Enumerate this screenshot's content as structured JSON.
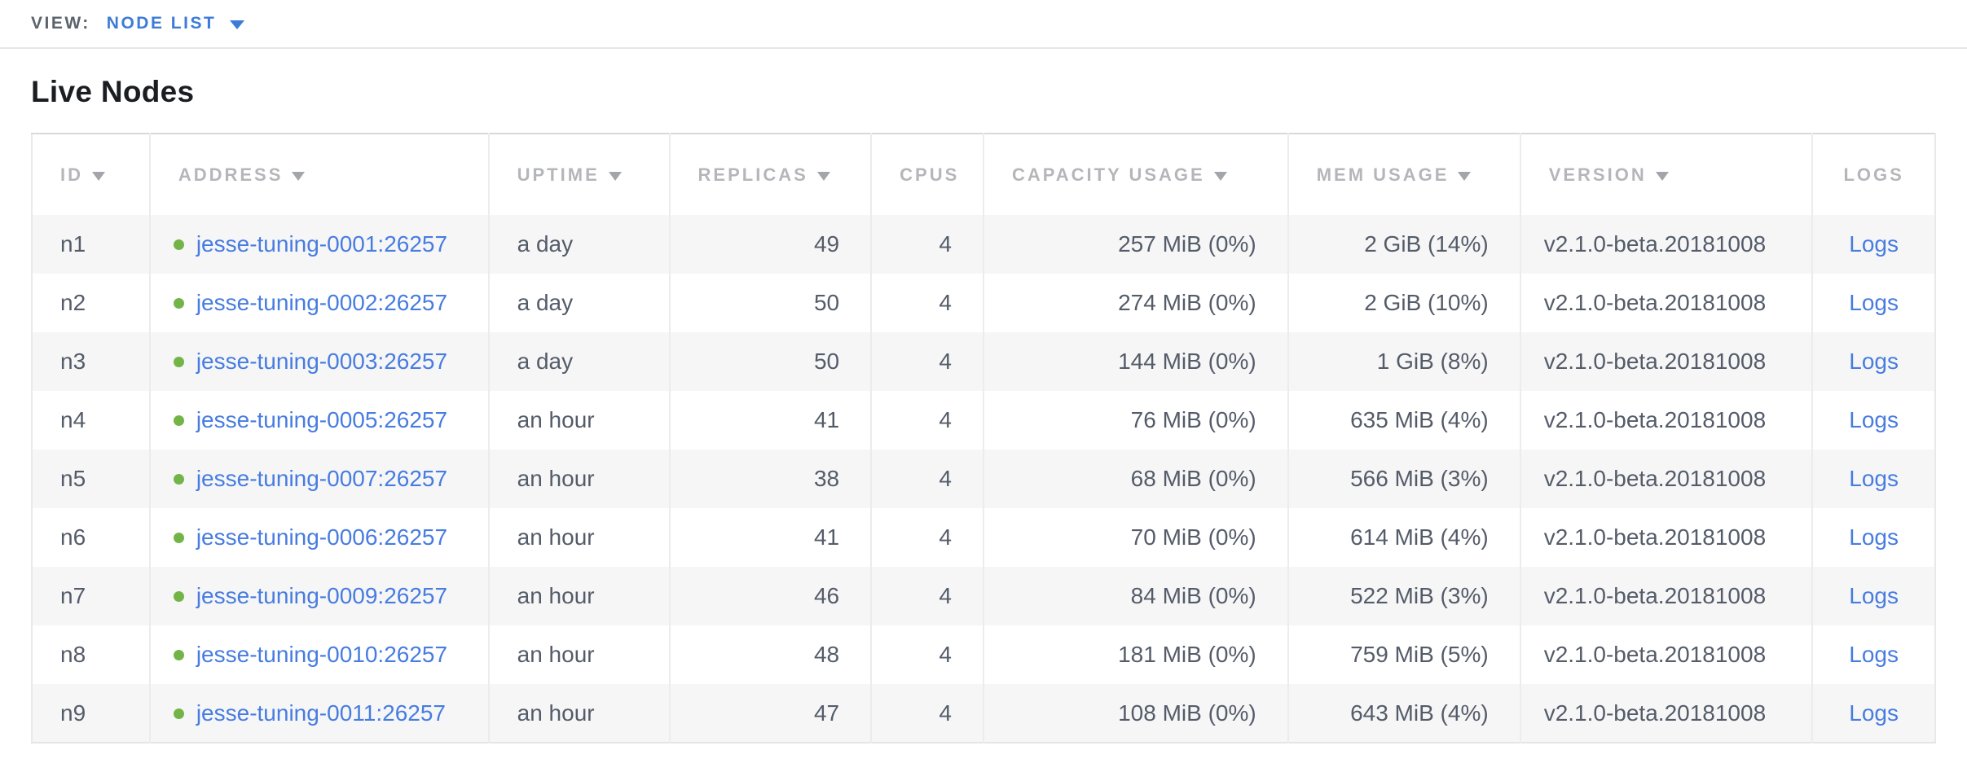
{
  "view_bar": {
    "label": "VIEW:",
    "selected": "NODE LIST",
    "dropdown_icon": "triangle-down"
  },
  "page": {
    "title": "Live Nodes"
  },
  "colors": {
    "link_blue": "#477ce0",
    "selector_blue": "#3d7bd8",
    "status_green": "#73b449",
    "header_gray": "#b4b6ba",
    "cell_text": "#545c69",
    "row_stripe": "#f6f6f7"
  },
  "table": {
    "logs_label": "Logs",
    "columns": [
      {
        "key": "id",
        "label": "ID",
        "sortable": true,
        "align": "left",
        "width": "6.2%"
      },
      {
        "key": "address",
        "label": "ADDRESS",
        "sortable": true,
        "align": "left",
        "width": "17.8%"
      },
      {
        "key": "uptime",
        "label": "UPTIME",
        "sortable": true,
        "align": "left",
        "width": "9.5%"
      },
      {
        "key": "replicas",
        "label": "REPLICAS",
        "sortable": true,
        "align": "right",
        "width": "10.6%"
      },
      {
        "key": "cpus",
        "label": "CPUS",
        "sortable": false,
        "align": "right",
        "width": "5.9%"
      },
      {
        "key": "capacity",
        "label": "CAPACITY USAGE",
        "sortable": true,
        "align": "right",
        "width": "16.0%"
      },
      {
        "key": "mem",
        "label": "MEM USAGE",
        "sortable": true,
        "align": "right",
        "width": "12.2%"
      },
      {
        "key": "version",
        "label": "VERSION",
        "sortable": true,
        "align": "left",
        "width": "15.35%"
      },
      {
        "key": "logs",
        "label": "LOGS",
        "sortable": false,
        "align": "center",
        "width": "6.45%"
      }
    ],
    "rows": [
      {
        "id": "n1",
        "address": "jesse-tuning-0001:26257",
        "status": "healthy",
        "uptime": "a day",
        "replicas": "49",
        "cpus": "4",
        "capacity": "257 MiB (0%)",
        "mem": "2 GiB (14%)",
        "version": "v2.1.0-beta.20181008"
      },
      {
        "id": "n2",
        "address": "jesse-tuning-0002:26257",
        "status": "healthy",
        "uptime": "a day",
        "replicas": "50",
        "cpus": "4",
        "capacity": "274 MiB (0%)",
        "mem": "2 GiB (10%)",
        "version": "v2.1.0-beta.20181008"
      },
      {
        "id": "n3",
        "address": "jesse-tuning-0003:26257",
        "status": "healthy",
        "uptime": "a day",
        "replicas": "50",
        "cpus": "4",
        "capacity": "144 MiB (0%)",
        "mem": "1 GiB (8%)",
        "version": "v2.1.0-beta.20181008"
      },
      {
        "id": "n4",
        "address": "jesse-tuning-0005:26257",
        "status": "healthy",
        "uptime": "an hour",
        "replicas": "41",
        "cpus": "4",
        "capacity": "76 MiB (0%)",
        "mem": "635 MiB (4%)",
        "version": "v2.1.0-beta.20181008"
      },
      {
        "id": "n5",
        "address": "jesse-tuning-0007:26257",
        "status": "healthy",
        "uptime": "an hour",
        "replicas": "38",
        "cpus": "4",
        "capacity": "68 MiB (0%)",
        "mem": "566 MiB (3%)",
        "version": "v2.1.0-beta.20181008"
      },
      {
        "id": "n6",
        "address": "jesse-tuning-0006:26257",
        "status": "healthy",
        "uptime": "an hour",
        "replicas": "41",
        "cpus": "4",
        "capacity": "70 MiB (0%)",
        "mem": "614 MiB (4%)",
        "version": "v2.1.0-beta.20181008"
      },
      {
        "id": "n7",
        "address": "jesse-tuning-0009:26257",
        "status": "healthy",
        "uptime": "an hour",
        "replicas": "46",
        "cpus": "4",
        "capacity": "84 MiB (0%)",
        "mem": "522 MiB (3%)",
        "version": "v2.1.0-beta.20181008"
      },
      {
        "id": "n8",
        "address": "jesse-tuning-0010:26257",
        "status": "healthy",
        "uptime": "an hour",
        "replicas": "48",
        "cpus": "4",
        "capacity": "181 MiB (0%)",
        "mem": "759 MiB (5%)",
        "version": "v2.1.0-beta.20181008"
      },
      {
        "id": "n9",
        "address": "jesse-tuning-0011:26257",
        "status": "healthy",
        "uptime": "an hour",
        "replicas": "47",
        "cpus": "4",
        "capacity": "108 MiB (0%)",
        "mem": "643 MiB (4%)",
        "version": "v2.1.0-beta.20181008"
      }
    ]
  }
}
